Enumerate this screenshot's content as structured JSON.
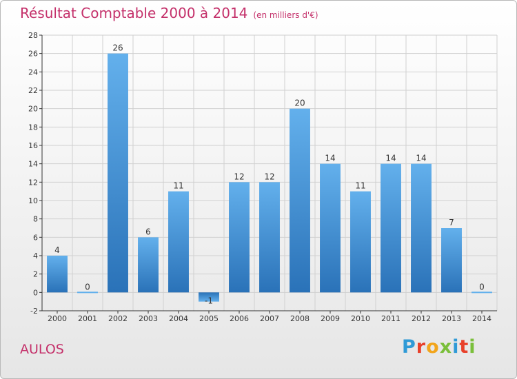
{
  "header": {
    "title": "Résultat Comptable 2000 à 2014",
    "subtitle": "(en milliers d'€)"
  },
  "commune": "AULOS",
  "logo": {
    "letters": [
      "P",
      "r",
      "o",
      "x",
      "i",
      "t",
      "i"
    ],
    "colors": [
      "#2f9ad6",
      "#e8402a",
      "#f2a51c",
      "#7abf3a",
      "#2f9ad6",
      "#e8402a",
      "#7abf3a"
    ]
  },
  "colors": {
    "title": "#c4306a",
    "bar_light": "#63b0ec",
    "bar_dark": "#2a72b8",
    "grid": "#d0d0d0"
  },
  "chart_data": {
    "type": "bar",
    "title": "Résultat Comptable 2000 à 2014 (en milliers d'€)",
    "xlabel": "",
    "ylabel": "",
    "categories": [
      "2000",
      "2001",
      "2002",
      "2003",
      "2004",
      "2005",
      "2006",
      "2007",
      "2008",
      "2009",
      "2010",
      "2011",
      "2012",
      "2013",
      "2014"
    ],
    "values": [
      4,
      0,
      26,
      6,
      11,
      -1,
      12,
      12,
      20,
      14,
      11,
      14,
      14,
      7,
      0
    ],
    "ylim": [
      -2,
      28
    ],
    "yticks": [
      -2,
      0,
      2,
      4,
      6,
      8,
      10,
      12,
      14,
      16,
      18,
      20,
      22,
      24,
      26,
      28
    ],
    "grid": true
  }
}
